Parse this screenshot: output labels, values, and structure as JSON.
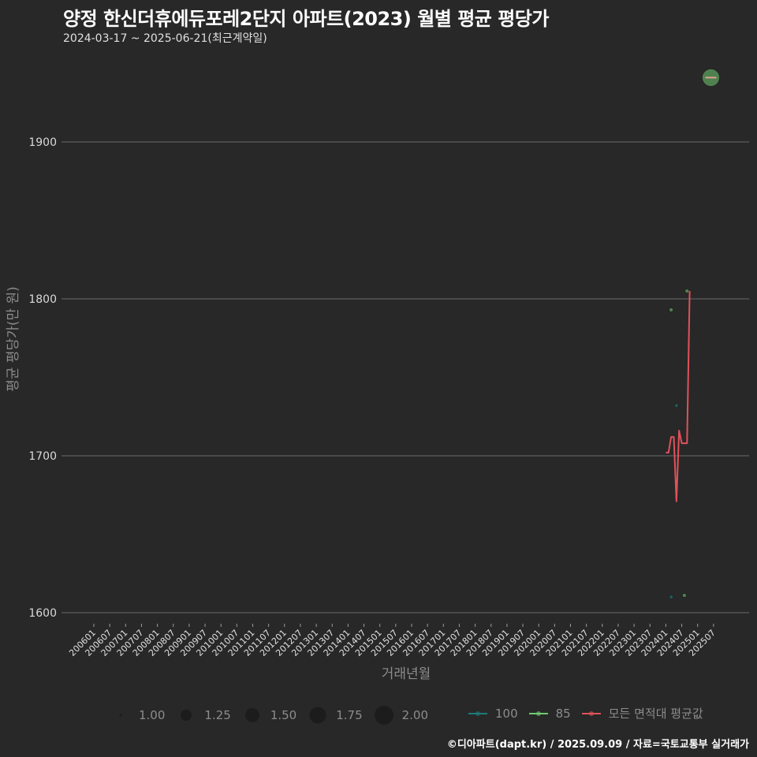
{
  "header": {
    "title": "양정 한신더휴에듀포레2단지 아파트(2023) 월별 평균 평당가",
    "subtitle": "2024-03-17 ~ 2025-06-21(최근계약일)"
  },
  "axes": {
    "ylabel": "평균 평당가(만 원)",
    "xlabel": "거래년월",
    "yticks": [
      "1600",
      "1700",
      "1800",
      "1900"
    ]
  },
  "legend": {
    "size": [
      {
        "label": "1.00",
        "r": 1.5
      },
      {
        "label": "1.25",
        "r": 7
      },
      {
        "label": "1.50",
        "r": 9
      },
      {
        "label": "1.75",
        "r": 10.5
      },
      {
        "label": "2.00",
        "r": 12
      }
    ],
    "series": [
      {
        "label": "100",
        "color": "#1f7a7a"
      },
      {
        "label": "85",
        "color": "#6fc96f"
      },
      {
        "label": "모든 면적대 평균값",
        "color": "#e0525a"
      }
    ]
  },
  "footer": {
    "text": "©디아파트(dapt.kr) / 2025.09.09 / 자료=국토교통부 실거래가"
  },
  "chart_data": {
    "type": "line",
    "title": "양정 한신더휴에듀포레2단지 아파트(2023) 월별 평균 평당가",
    "subtitle": "2024-03-17 ~ 2025-06-21(최근계약일)",
    "xlabel": "거래년월",
    "ylabel": "평균 평당가(만 원)",
    "ylim": [
      1580,
      1985
    ],
    "grid": true,
    "legend_position": "bottom",
    "x_ticks": [
      "200601",
      "200607",
      "200701",
      "200707",
      "200801",
      "200807",
      "200901",
      "200907",
      "201001",
      "201007",
      "201101",
      "201107",
      "201201",
      "201207",
      "201301",
      "201307",
      "201401",
      "201407",
      "201501",
      "201507",
      "201601",
      "201607",
      "201701",
      "201707",
      "201801",
      "201807",
      "201901",
      "201907",
      "202001",
      "202007",
      "202101",
      "202107",
      "202201",
      "202207",
      "202301",
      "202307",
      "202401",
      "202407",
      "202501",
      "202507"
    ],
    "series": [
      {
        "name": "모든 면적대 평균값",
        "type": "line",
        "color": "#e0525a",
        "x": [
          "202401",
          "202402",
          "202403",
          "202404",
          "202405",
          "202406",
          "202407",
          "202408",
          "202409",
          "202410"
        ],
        "values": [
          1702,
          1702,
          1712,
          1712,
          1671,
          1716,
          1708,
          1708,
          1708,
          1805
        ]
      },
      {
        "name": "100",
        "type": "scatter",
        "color": "#1f7a7a",
        "points": [
          {
            "x": "202403",
            "y": 1610,
            "size": 1.0
          },
          {
            "x": "202405",
            "y": 1732,
            "size": 1.0
          }
        ]
      },
      {
        "name": "85",
        "type": "scatter",
        "color": "#6fc96f",
        "points": [
          {
            "x": "202403",
            "y": 1793,
            "size": 1.0
          },
          {
            "x": "202408",
            "y": 1611,
            "size": 1.0
          },
          {
            "x": "202409",
            "y": 1805,
            "size": 1.0
          },
          {
            "x": "202506",
            "y": 1941,
            "size": 2.0
          }
        ]
      }
    ]
  }
}
